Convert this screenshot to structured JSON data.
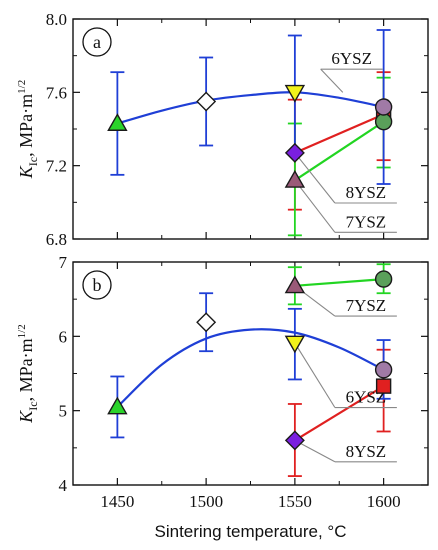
{
  "chart_data": [
    {
      "type": "scatter",
      "panel_label": "a",
      "ylabel_main": "K",
      "ylabel_sub": "Ic",
      "ylabel_unit": ", MPa·m",
      "ylabel_exp": "1/2",
      "xlim": [
        1425,
        1625
      ],
      "ylim": [
        6.8,
        8.0
      ],
      "xticks": [
        1450,
        1500,
        1550,
        1600
      ],
      "yticks": [
        6.8,
        7.2,
        7.6,
        8.0
      ],
      "ytick_labels": [
        "6.8",
        "7.2",
        "7.6",
        "8.0"
      ],
      "fit_curve": {
        "color": "#1f3fd6",
        "x": [
          1450,
          1475,
          1500,
          1525,
          1550,
          1575,
          1600
        ],
        "y": [
          7.43,
          7.5,
          7.555,
          7.585,
          7.6,
          7.57,
          7.52
        ]
      },
      "points": [
        {
          "x": 1450,
          "y": 7.43,
          "err_low": 7.15,
          "err_high": 7.71,
          "marker": "triangle-up",
          "fill": "#2bd42b"
        },
        {
          "x": 1500,
          "y": 7.55,
          "err_low": 7.31,
          "err_high": 7.79,
          "marker": "diamond",
          "fill": "#ffffff"
        },
        {
          "x": 1550,
          "y": 7.6,
          "err_low": 7.28,
          "err_high": 7.91,
          "marker": "triangle-down",
          "fill": "#f2f21a"
        },
        {
          "x": 1600,
          "y": 7.52,
          "err_low": 7.1,
          "err_high": 7.94,
          "marker": "circle",
          "fill": "#a07aa6"
        }
      ],
      "series": [
        {
          "name": "8YSZ",
          "color": "#e02020",
          "points": [
            {
              "x": 1550,
              "y": 7.27,
              "err_low": 6.96,
              "err_high": 7.56,
              "marker": "diamond",
              "fill": "#7a1fe0"
            },
            {
              "x": 1600,
              "y": 7.48,
              "err_low": 7.23,
              "err_high": 7.71,
              "marker": "square",
              "fill": "#e02020"
            }
          ]
        },
        {
          "name": "7YSZ",
          "color": "#22d522",
          "points": [
            {
              "x": 1550,
              "y": 7.12,
              "err_low": 6.82,
              "err_high": 7.43,
              "marker": "triangle-up",
              "fill": "#9a5a78"
            },
            {
              "x": 1600,
              "y": 7.44,
              "err_low": 7.19,
              "err_high": 7.68,
              "marker": "circle",
              "fill": "#5aa05a"
            }
          ]
        }
      ],
      "annotations": [
        {
          "text": "6YSZ",
          "point_x": 1577,
          "point_y": 7.6,
          "label_x": 1582,
          "label_y": 7.77
        },
        {
          "text": "8YSZ",
          "point_x": 1550,
          "point_y": 7.27,
          "label_x": 1590,
          "label_y": 7.04
        },
        {
          "text": "7YSZ",
          "point_x": 1550,
          "point_y": 7.12,
          "label_x": 1590,
          "label_y": 6.88
        }
      ]
    },
    {
      "type": "scatter",
      "panel_label": "b",
      "ylabel_main": "K",
      "ylabel_sub": "Ic",
      "ylabel_unit": ", MPa·m",
      "ylabel_exp": "1/2",
      "xlabel": "Sintering temperature, °C",
      "xlim": [
        1425,
        1625
      ],
      "ylim": [
        4,
        7
      ],
      "xticks": [
        1450,
        1500,
        1550,
        1600
      ],
      "xtick_labels": [
        "1450",
        "1500",
        "1550",
        "1600"
      ],
      "yticks": [
        4,
        5,
        6,
        7
      ],
      "ytick_labels": [
        "4",
        "5",
        "6",
        "7"
      ],
      "fit_curve": {
        "color": "#1f3fd6",
        "x": [
          1450,
          1475,
          1500,
          1525,
          1550,
          1575,
          1600
        ],
        "y": [
          5.05,
          5.62,
          5.97,
          6.09,
          6.05,
          5.85,
          5.55
        ]
      },
      "points": [
        {
          "x": 1450,
          "y": 5.05,
          "err_low": 4.64,
          "err_high": 5.46,
          "marker": "triangle-up",
          "fill": "#2bd42b"
        },
        {
          "x": 1500,
          "y": 6.19,
          "err_low": 5.8,
          "err_high": 6.58,
          "marker": "diamond",
          "fill": "#ffffff"
        },
        {
          "x": 1550,
          "y": 5.91,
          "err_low": 5.42,
          "err_high": 6.37,
          "marker": "triangle-down",
          "fill": "#f2f21a"
        },
        {
          "x": 1600,
          "y": 5.55,
          "err_low": 5.16,
          "err_high": 5.95,
          "marker": "circle",
          "fill": "#a07aa6"
        }
      ],
      "series": [
        {
          "name": "7YSZ",
          "color": "#22d522",
          "points": [
            {
              "x": 1550,
              "y": 6.68,
              "err_low": 6.43,
              "err_high": 6.93,
              "marker": "triangle-up",
              "fill": "#9a5a78"
            },
            {
              "x": 1600,
              "y": 6.77,
              "err_low": 6.58,
              "err_high": 6.97,
              "marker": "circle",
              "fill": "#5aa05a"
            }
          ]
        },
        {
          "name": "8YSZ",
          "color": "#e02020",
          "points": [
            {
              "x": 1550,
              "y": 4.6,
              "err_low": 4.12,
              "err_high": 5.09,
              "marker": "diamond",
              "fill": "#7a1fe0"
            },
            {
              "x": 1600,
              "y": 5.33,
              "err_low": 4.72,
              "err_high": 5.82,
              "marker": "square",
              "fill": "#e02020"
            }
          ]
        }
      ],
      "annotations": [
        {
          "text": "7YSZ",
          "point_x": 1550,
          "point_y": 6.68,
          "label_x": 1590,
          "label_y": 6.38
        },
        {
          "text": "6YSZ",
          "point_x": 1550,
          "point_y": 5.91,
          "label_x": 1590,
          "label_y": 5.15
        },
        {
          "text": "8YSZ",
          "point_x": 1550,
          "point_y": 4.6,
          "label_x": 1590,
          "label_y": 4.42
        }
      ]
    }
  ]
}
